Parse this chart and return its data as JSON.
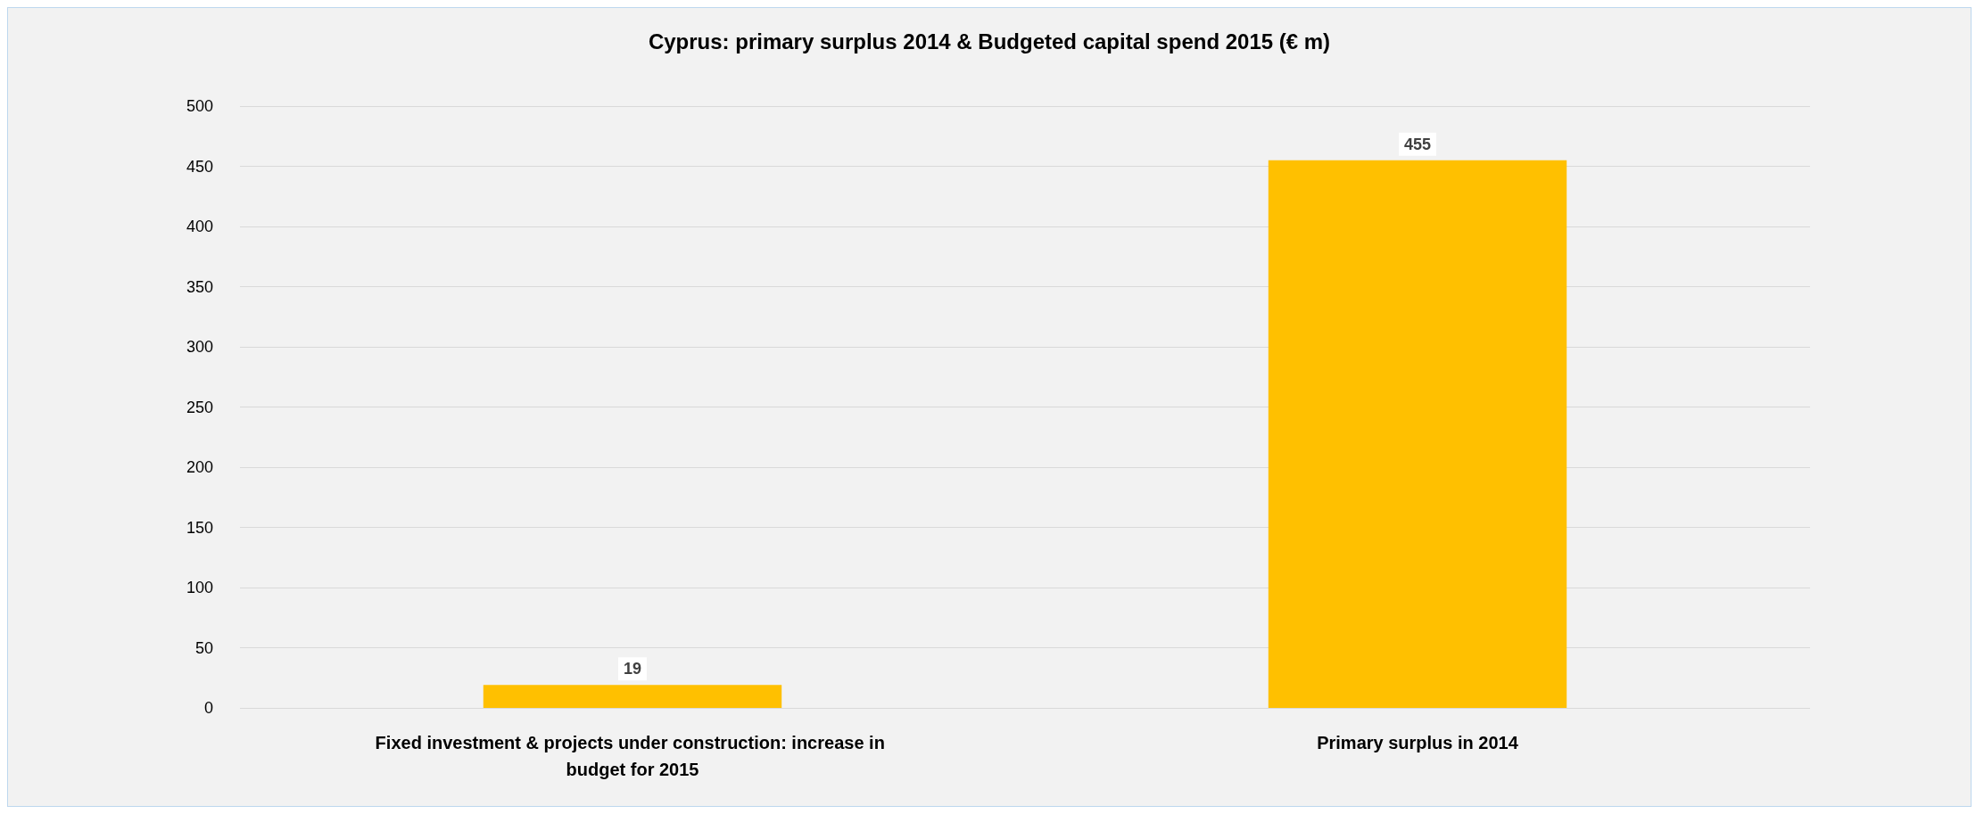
{
  "chart_data": {
    "type": "bar",
    "title": "Cyprus: primary surplus 2014 & Budgeted capital spend 2015 (€ m)",
    "categories": [
      "Fixed investment & projects under construction: increase in budget for 2015",
      "Primary surplus in 2014"
    ],
    "values": [
      19,
      455
    ],
    "color": "#ffc000",
    "ylim": [
      0,
      500
    ],
    "yticks": [
      0,
      50,
      100,
      150,
      200,
      250,
      300,
      350,
      400,
      450,
      500
    ],
    "grid": true,
    "data_labels": true
  }
}
